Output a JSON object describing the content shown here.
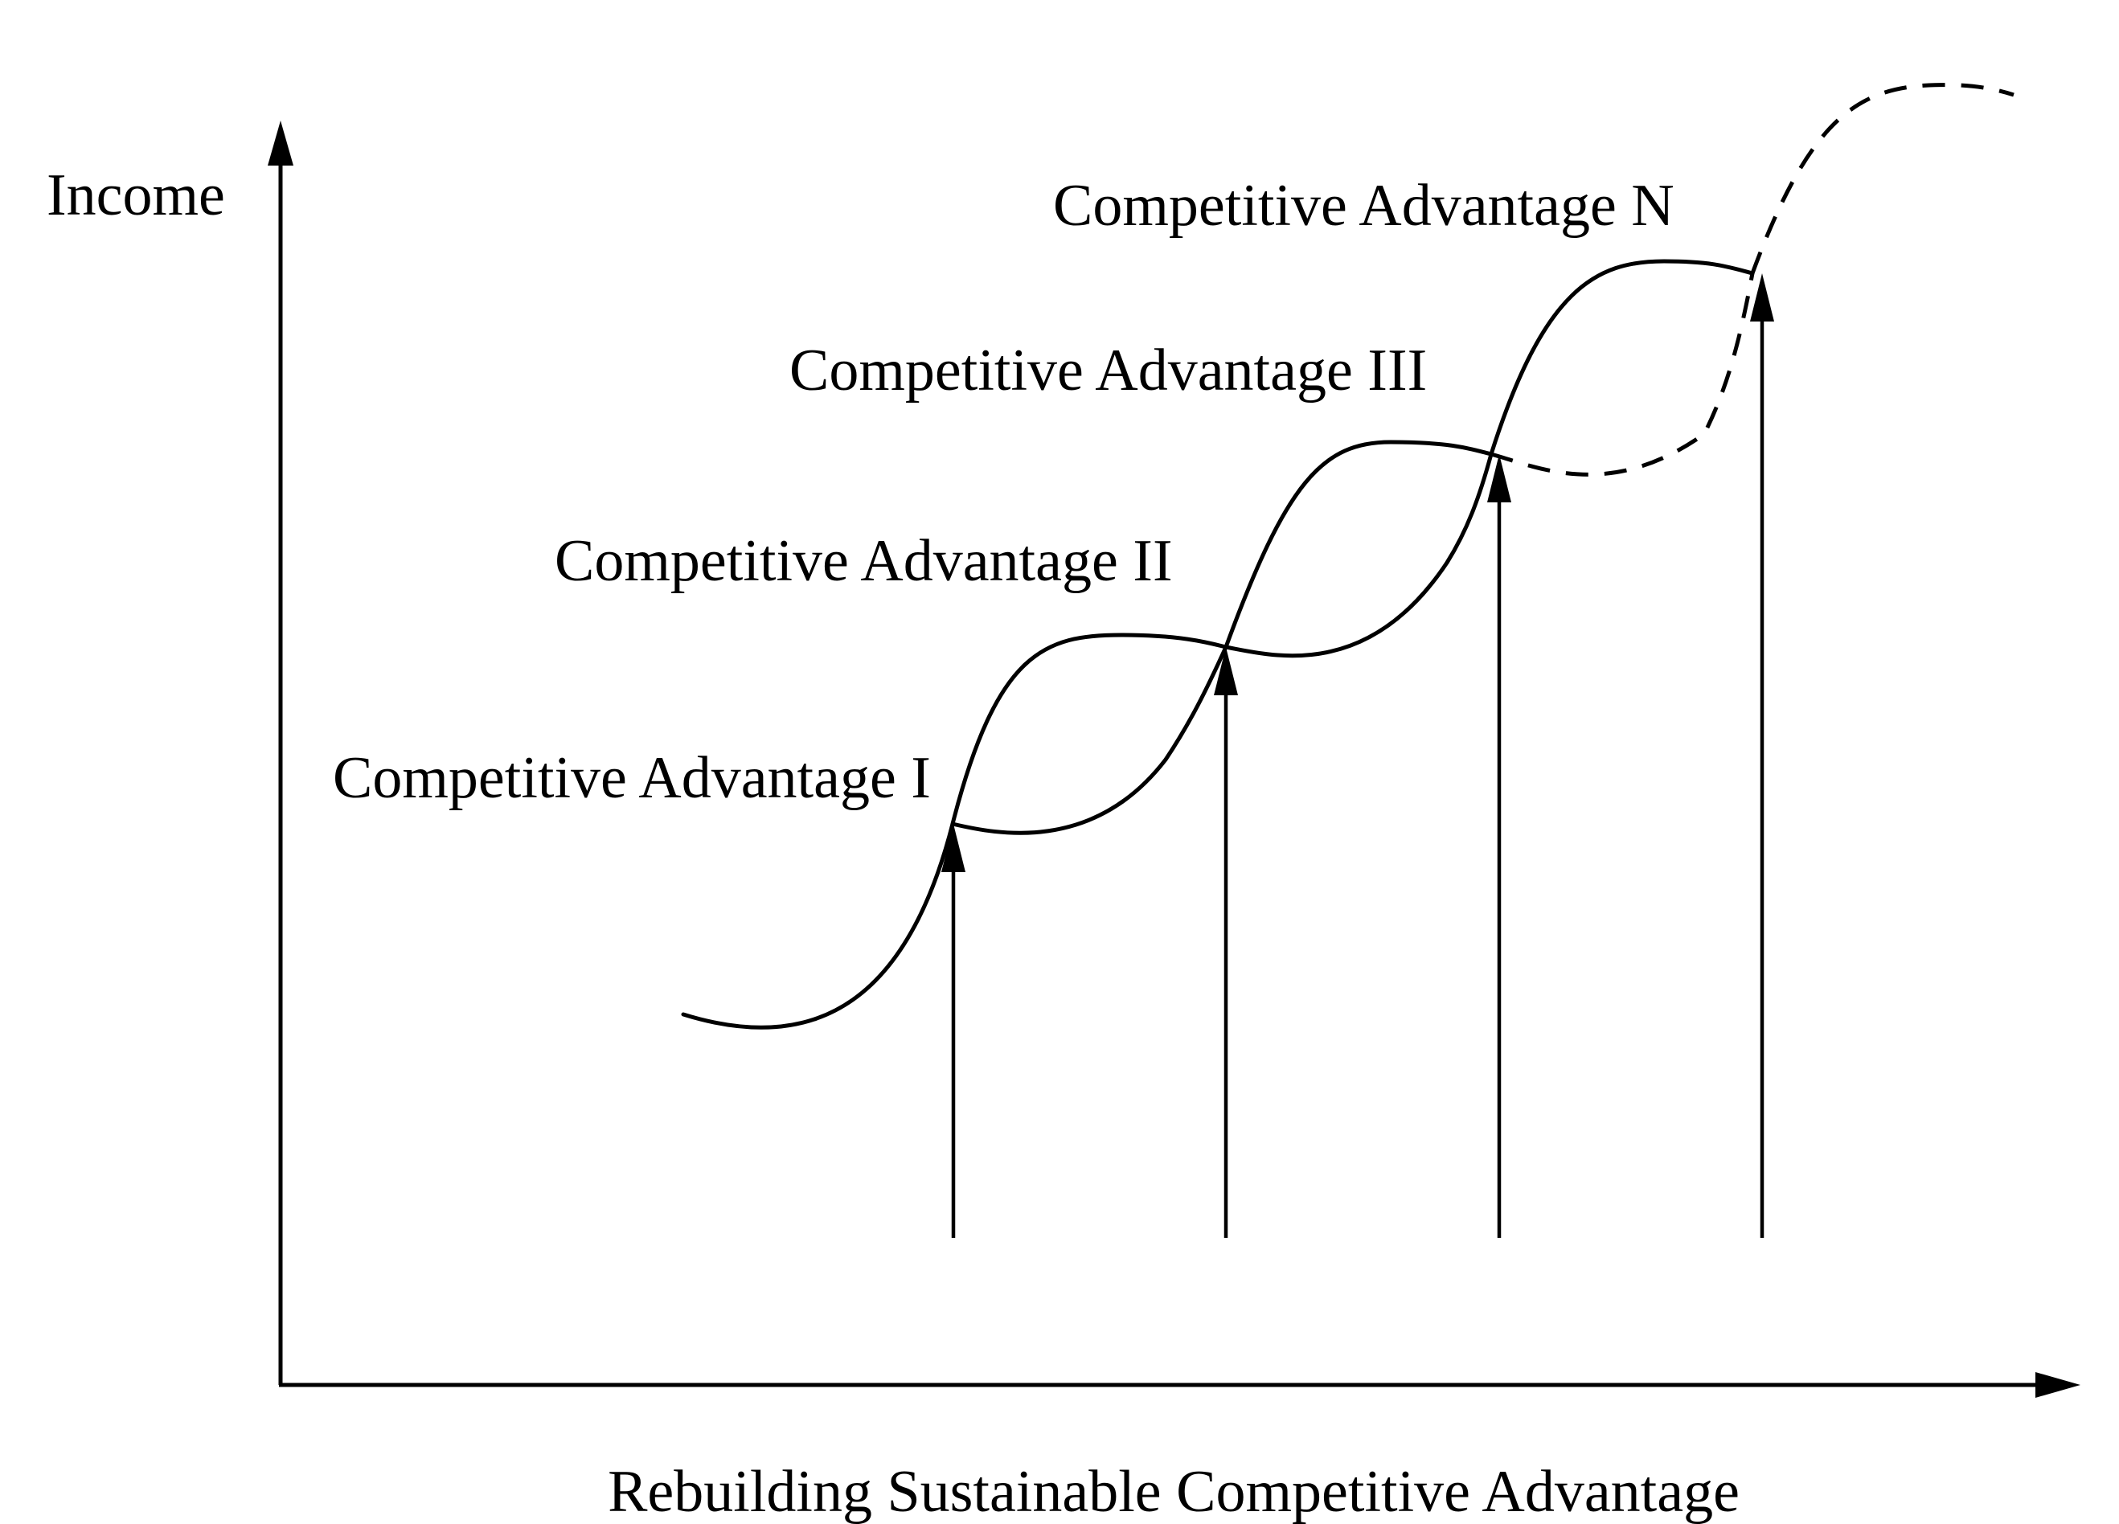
{
  "axes": {
    "y_label": "Income",
    "x_label": "Rebuilding Sustainable Competitive Advantage"
  },
  "curve_labels": [
    "Competitive Advantage I",
    "Competitive Advantage II",
    "Competitive Advantage III",
    "Competitive Advantage N"
  ],
  "colors": {
    "ink": "#000000",
    "background": "#ffffff"
  }
}
